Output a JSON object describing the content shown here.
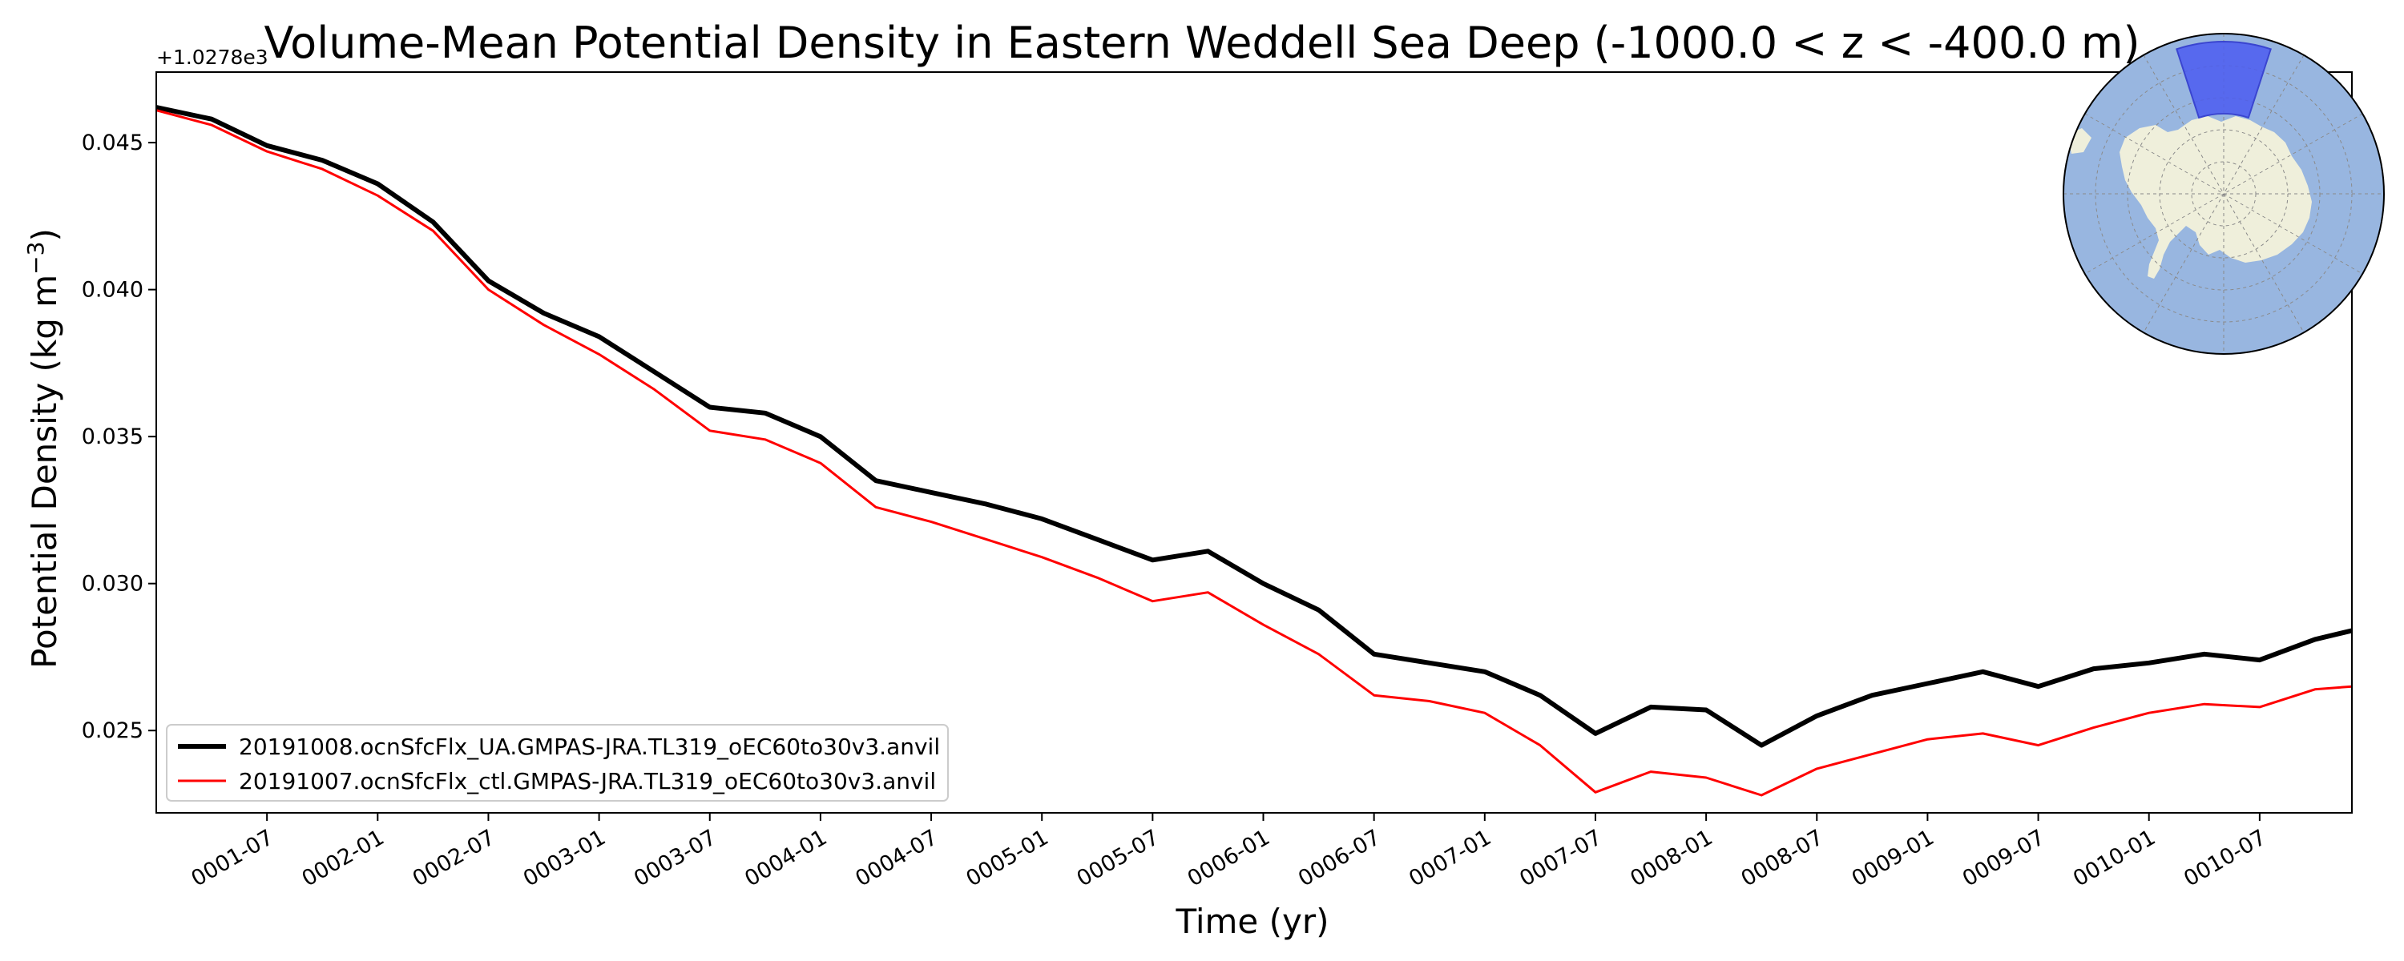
{
  "chart_data": {
    "type": "line",
    "title": "Volume-Mean Potential Density in Eastern Weddell Sea Deep (-1000.0 < z < -400.0 m)",
    "xlabel": "Time (yr)",
    "ylabel_text": "Potential Density (kg m",
    "ylabel_unit_exp": "−3",
    "ylabel_close": ")",
    "offset_text": "+1.0278e3",
    "xlim": [
      "0001-01",
      "0010-12"
    ],
    "ylim": [
      0.0222,
      0.0474
    ],
    "xtick_labels": [
      "0001-07",
      "0002-01",
      "0002-07",
      "0003-01",
      "0003-07",
      "0004-01",
      "0004-07",
      "0005-01",
      "0005-07",
      "0006-01",
      "0006-07",
      "0007-01",
      "0007-07",
      "0008-01",
      "0008-07",
      "0009-01",
      "0009-07",
      "0010-01",
      "0010-07"
    ],
    "yticks": [
      0.025,
      0.03,
      0.035,
      0.04,
      0.045
    ],
    "ytick_labels": [
      "0.025",
      "0.030",
      "0.035",
      "0.040",
      "0.045"
    ],
    "legend_position": "lower-left",
    "grid": false,
    "series": [
      {
        "name": "20191008.ocnSfcFlx_UA.GMPAS-JRA.TL319_oEC60to30v3.anvil",
        "color": "#000000",
        "x": [
          "0001-01",
          "0001-04",
          "0001-07",
          "0001-10",
          "0002-01",
          "0002-04",
          "0002-07",
          "0002-10",
          "0003-01",
          "0003-04",
          "0003-07",
          "0003-10",
          "0004-01",
          "0004-04",
          "0004-07",
          "0004-10",
          "0005-01",
          "0005-04",
          "0005-07",
          "0005-10",
          "0006-01",
          "0006-04",
          "0006-07",
          "0006-10",
          "0007-01",
          "0007-04",
          "0007-07",
          "0007-10",
          "0008-01",
          "0008-04",
          "0008-07",
          "0008-10",
          "0009-01",
          "0009-04",
          "0009-07",
          "0009-10",
          "0010-01",
          "0010-04",
          "0010-07",
          "0010-10",
          "0010-12"
        ],
        "y": [
          0.0462,
          0.0458,
          0.0449,
          0.0444,
          0.0436,
          0.0423,
          0.0403,
          0.0392,
          0.0384,
          0.0372,
          0.036,
          0.0358,
          0.035,
          0.0335,
          0.0331,
          0.0327,
          0.0322,
          0.0315,
          0.0308,
          0.0311,
          0.03,
          0.0291,
          0.0276,
          0.0273,
          0.027,
          0.0262,
          0.0249,
          0.0258,
          0.0257,
          0.0245,
          0.0255,
          0.0262,
          0.0266,
          0.027,
          0.0265,
          0.0271,
          0.0273,
          0.0276,
          0.0274,
          0.0281,
          0.0284
        ]
      },
      {
        "name": "20191007.ocnSfcFlx_ctl.GMPAS-JRA.TL319_oEC60to30v3.anvil",
        "color": "#ff0000",
        "x": [
          "0001-01",
          "0001-04",
          "0001-07",
          "0001-10",
          "0002-01",
          "0002-04",
          "0002-07",
          "0002-10",
          "0003-01",
          "0003-04",
          "0003-07",
          "0003-10",
          "0004-01",
          "0004-04",
          "0004-07",
          "0004-10",
          "0005-01",
          "0005-04",
          "0005-07",
          "0005-10",
          "0006-01",
          "0006-04",
          "0006-07",
          "0006-10",
          "0007-01",
          "0007-04",
          "0007-07",
          "0007-10",
          "0008-01",
          "0008-04",
          "0008-07",
          "0008-10",
          "0009-01",
          "0009-04",
          "0009-07",
          "0009-10",
          "0010-01",
          "0010-04",
          "0010-07",
          "0010-10",
          "0010-12"
        ],
        "y": [
          0.0461,
          0.0456,
          0.0447,
          0.0441,
          0.0432,
          0.042,
          0.04,
          0.0388,
          0.0378,
          0.0366,
          0.0352,
          0.0349,
          0.0341,
          0.0326,
          0.0321,
          0.0315,
          0.0309,
          0.0302,
          0.0294,
          0.0297,
          0.0286,
          0.0276,
          0.0262,
          0.026,
          0.0256,
          0.0245,
          0.0229,
          0.0236,
          0.0234,
          0.0228,
          0.0237,
          0.0242,
          0.0247,
          0.0249,
          0.0245,
          0.0251,
          0.0256,
          0.0259,
          0.0258,
          0.0264,
          0.0265
        ]
      }
    ]
  },
  "inset_map": {
    "ocean_color": "#98b6e0",
    "land_color": "#efefdb",
    "region_color": "#4b5cf0"
  }
}
